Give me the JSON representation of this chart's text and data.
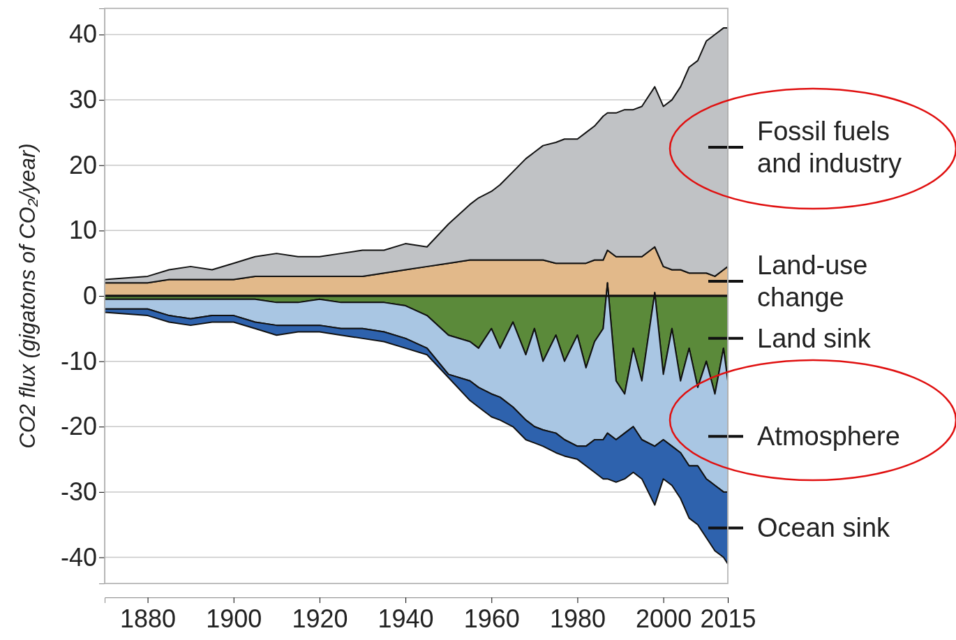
{
  "chart_data": [
    {
      "type": "area",
      "stacked": true,
      "ylabel": "CO2 flux (gigatons of CO₂/year)",
      "x": [
        1870,
        1880,
        1885,
        1890,
        1895,
        1900,
        1905,
        1910,
        1915,
        1920,
        1925,
        1930,
        1935,
        1940,
        1945,
        1950,
        1955,
        1957,
        1960,
        1962,
        1965,
        1968,
        1970,
        1972,
        1975,
        1977,
        1980,
        1982,
        1984,
        1986,
        1987,
        1989,
        1991,
        1993,
        1995,
        1998,
        2000,
        2002,
        2004,
        2006,
        2008,
        2010,
        2012,
        2014,
        2015
      ],
      "series": [
        {
          "name": "Land-use change",
          "color": "#e2b98a",
          "values": [
            2,
            2,
            2.5,
            2.5,
            2.5,
            2.5,
            3,
            3,
            3,
            3,
            3,
            3,
            3.5,
            4,
            4.5,
            5,
            5.5,
            5.5,
            5.5,
            5.5,
            5.5,
            5.5,
            5.5,
            5.5,
            5,
            5,
            5,
            5,
            5.5,
            5.5,
            7,
            6,
            6,
            6,
            6,
            7.5,
            4.5,
            4,
            4,
            3.5,
            3.5,
            3.5,
            3,
            4,
            4.5
          ]
        },
        {
          "name": "Fossil fuels and industry",
          "color": "#c0c2c5",
          "values": [
            0.5,
            1,
            1.5,
            2,
            1.5,
            2.5,
            3,
            3.5,
            3,
            3,
            3.5,
            4,
            3.5,
            4,
            3,
            6,
            8.5,
            9.5,
            10.5,
            11.5,
            13.5,
            15.5,
            16.5,
            17.5,
            18.5,
            19,
            19,
            20,
            20.5,
            22,
            21,
            22,
            22.5,
            22.5,
            23,
            24.5,
            24.5,
            26,
            28,
            31.5,
            32.5,
            35.5,
            37,
            37,
            36.5
          ]
        }
      ],
      "xlim": [
        1870,
        2015
      ],
      "xticks": [
        1880,
        1900,
        1920,
        1940,
        1960,
        1980,
        2000,
        2015
      ],
      "ylim": [
        -44,
        44
      ],
      "yticks": [
        -40,
        -30,
        -20,
        -10,
        0,
        10,
        20,
        30,
        40
      ],
      "grid": "y",
      "legend": "right"
    },
    {
      "type": "area",
      "stacked": true,
      "x": [
        1870,
        1880,
        1885,
        1890,
        1895,
        1900,
        1905,
        1910,
        1915,
        1920,
        1925,
        1930,
        1935,
        1940,
        1945,
        1950,
        1955,
        1957,
        1960,
        1962,
        1965,
        1968,
        1970,
        1972,
        1975,
        1977,
        1980,
        1982,
        1984,
        1986,
        1987,
        1989,
        1991,
        1993,
        1995,
        1998,
        2000,
        2002,
        2004,
        2006,
        2008,
        2010,
        2012,
        2014,
        2015
      ],
      "series": [
        {
          "name": "Land sink",
          "color": "#5b8a3a",
          "values": [
            -0.5,
            -0.5,
            -0.5,
            -0.5,
            -0.5,
            -0.5,
            -0.5,
            -1,
            -1,
            -0.5,
            -1,
            -1,
            -1,
            -1.5,
            -3,
            -6,
            -7,
            -8,
            -5,
            -8,
            -4,
            -9,
            -5,
            -10,
            -6,
            -10,
            -6,
            -11,
            -7,
            -5,
            2,
            -13,
            -15,
            -8,
            -13,
            0.5,
            -12,
            -5,
            -13,
            -8,
            -14,
            -10,
            -15,
            -8,
            -13
          ]
        },
        {
          "name": "Atmosphere",
          "color": "#a9c6e3",
          "values": [
            -1.5,
            -1.5,
            -2.5,
            -3,
            -2.5,
            -2.5,
            -3.5,
            -3.5,
            -3.5,
            -4,
            -4,
            -4,
            -4.5,
            -5,
            -5,
            -6,
            -6,
            -6,
            -10,
            -7.5,
            -13,
            -10,
            -15,
            -10.5,
            -15,
            -12,
            -17,
            -12,
            -15,
            -17,
            -23,
            -9,
            -6,
            -12,
            -9,
            -23.5,
            -10,
            -18,
            -11,
            -18,
            -12,
            -18,
            -14,
            -22,
            -17
          ]
        },
        {
          "name": "Ocean sink",
          "color": "#2e62ad",
          "values": [
            -0.5,
            -1,
            -1,
            -1,
            -1,
            -1,
            -1,
            -1.5,
            -1,
            -1,
            -1,
            -1.5,
            -1.5,
            -1.5,
            -1,
            -0.5,
            -3,
            -3,
            -3.5,
            -3.5,
            -3,
            -3,
            -2.5,
            -2.5,
            -3,
            -2.5,
            -2,
            -3,
            -5,
            -6,
            -7,
            -6.5,
            -7,
            -7,
            -6,
            -9,
            -6,
            -6,
            -7,
            -8,
            -9,
            -9,
            -10,
            -10,
            -11
          ]
        }
      ],
      "xlim": [
        1870,
        2015
      ],
      "ylim": [
        -44,
        44
      ],
      "legend": "right"
    }
  ]
}
